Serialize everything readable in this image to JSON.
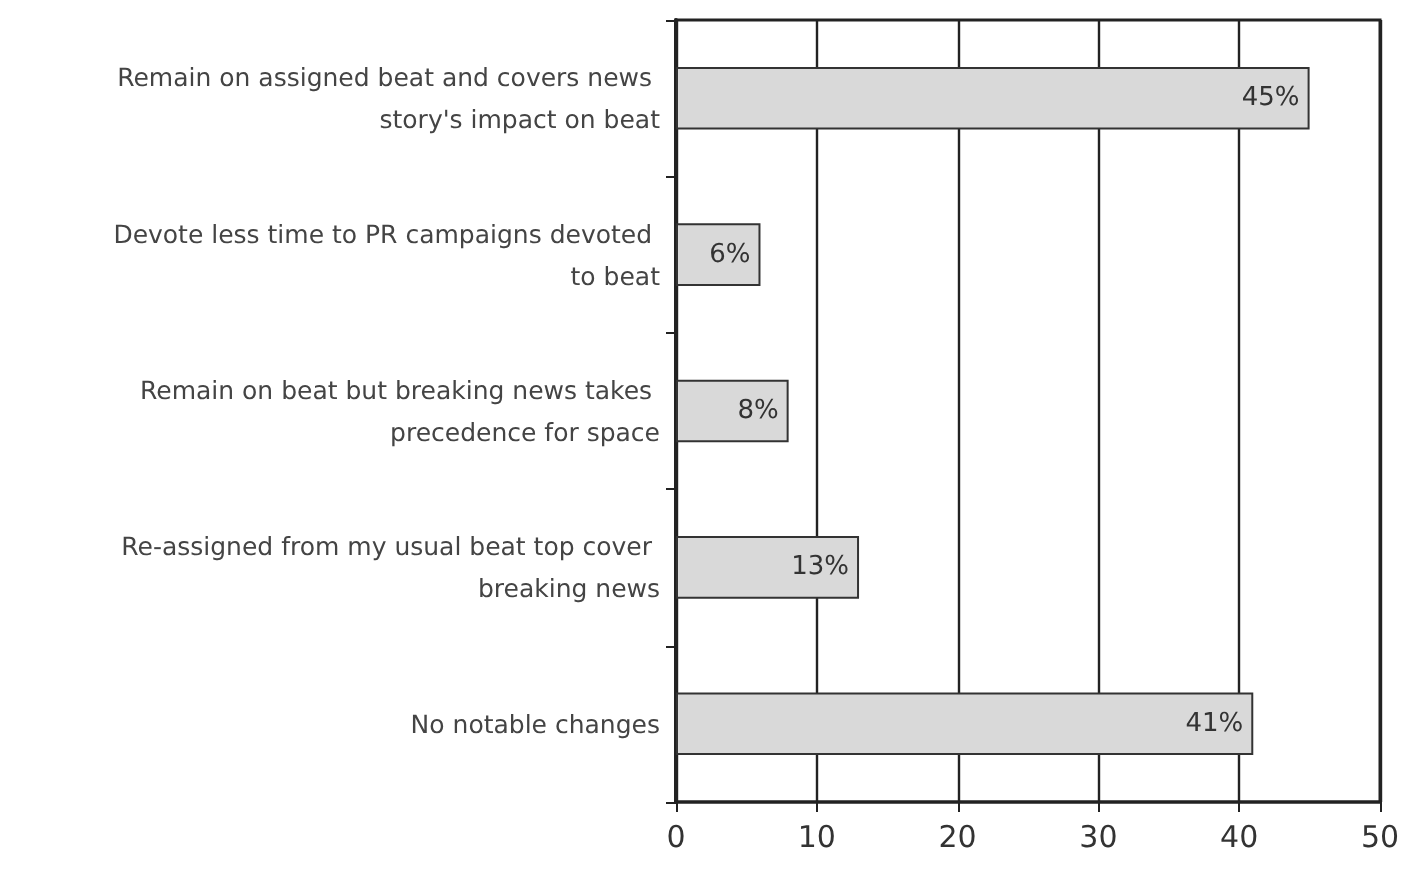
{
  "chart_data": {
    "type": "bar",
    "orientation": "horizontal",
    "categories": [
      "Remain on assigned beat and covers news story's impact on beat",
      "Devote less time to PR campaigns devoted to beat",
      "Remain on beat but breaking news takes precedence for space",
      "Re-assigned from my usual beat top cover breaking news",
      "No notable changes"
    ],
    "values": [
      45,
      6,
      8,
      13,
      41
    ],
    "value_labels": [
      "45%",
      "6%",
      "8%",
      "13%",
      "41%"
    ],
    "color": "#d9d9d9",
    "xlim": [
      0,
      50
    ],
    "xticks": [
      0,
      10,
      20,
      30,
      40,
      50
    ],
    "grid": "x"
  }
}
